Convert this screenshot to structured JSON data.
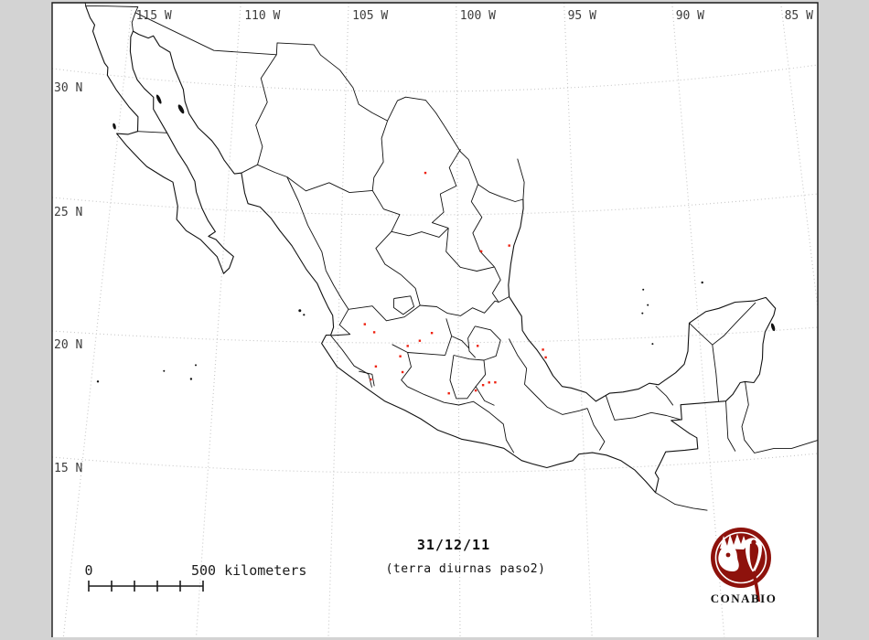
{
  "window": {
    "background_color": "#d3d3d3",
    "plot_background_color": "#ffffff",
    "frame_color": "#1a1a1a"
  },
  "axes": {
    "lon_labels": [
      {
        "value": 115,
        "label": "115 W"
      },
      {
        "value": 110,
        "label": "110 W"
      },
      {
        "value": 105,
        "label": "105 W"
      },
      {
        "value": 100,
        "label": "100 W"
      },
      {
        "value": 95,
        "label": "95 W"
      },
      {
        "value": 90,
        "label": "90 W"
      },
      {
        "value": 85,
        "label": "85 W"
      }
    ],
    "lat_labels": [
      {
        "value": 30,
        "label": "30 N"
      },
      {
        "value": 25,
        "label": "25 N"
      },
      {
        "value": 20,
        "label": "20 N"
      },
      {
        "value": 15,
        "label": "15 N"
      }
    ]
  },
  "annotations": {
    "date": "31/12/11",
    "dataset": "(terra diurnas paso2)"
  },
  "scalebar": {
    "zero_label": "0",
    "distance_label": "500 kilometers",
    "kilometers": 500,
    "segments": 5
  },
  "logo": {
    "caption": "CONABIO",
    "color": "#8e120c"
  },
  "style": {
    "grid_color": "#c6c6c6",
    "line_color": "#111111",
    "fire_color": "#ee2211",
    "label_color": "#3d3d3d"
  },
  "fire_points": [
    {
      "lon": 101.4,
      "lat": 27.0
    },
    {
      "lon": 99.0,
      "lat": 24.0
    },
    {
      "lon": 97.8,
      "lat": 24.2
    },
    {
      "lon": 103.9,
      "lat": 21.2
    },
    {
      "lon": 103.5,
      "lat": 20.9
    },
    {
      "lon": 102.1,
      "lat": 20.4
    },
    {
      "lon": 101.6,
      "lat": 20.6
    },
    {
      "lon": 101.1,
      "lat": 20.9
    },
    {
      "lon": 102.4,
      "lat": 20.0
    },
    {
      "lon": 103.4,
      "lat": 19.6
    },
    {
      "lon": 102.3,
      "lat": 19.4
    },
    {
      "lon": 103.6,
      "lat": 19.1
    },
    {
      "lon": 99.2,
      "lat": 20.4
    },
    {
      "lon": 100.4,
      "lat": 18.6
    },
    {
      "lon": 99.3,
      "lat": 18.7
    },
    {
      "lon": 99.0,
      "lat": 18.9
    },
    {
      "lon": 98.75,
      "lat": 19.0
    },
    {
      "lon": 98.5,
      "lat": 19.0
    },
    {
      "lon": 96.4,
      "lat": 19.9
    },
    {
      "lon": 96.5,
      "lat": 20.2
    }
  ]
}
